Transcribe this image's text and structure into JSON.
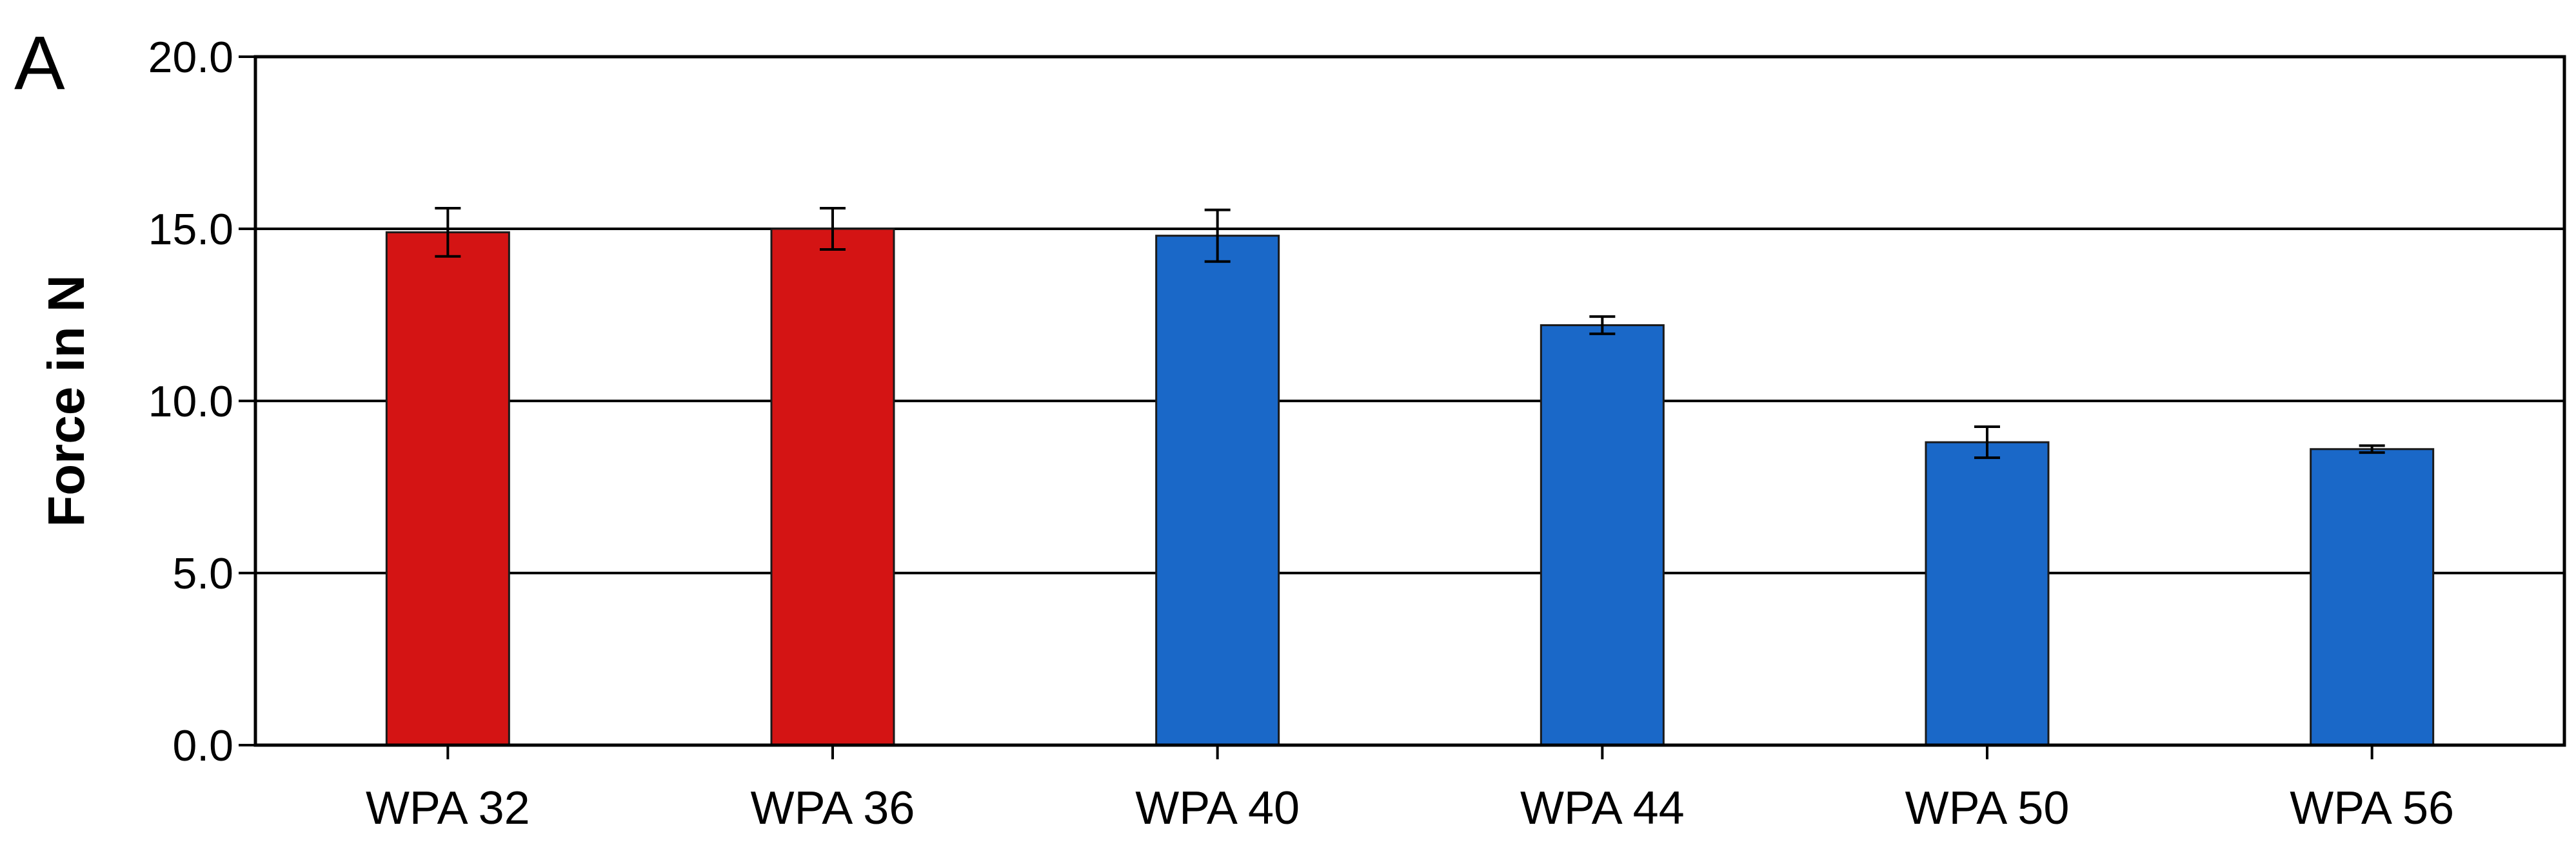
{
  "panel_label": "A",
  "colors": {
    "group_red": "#d41414",
    "group_blue": "#1a68c8",
    "bar_edge": "#1a1a1a",
    "grid": "#000000",
    "axis": "#000000"
  },
  "chart_data": {
    "type": "bar",
    "title": "",
    "xlabel": "",
    "ylabel": "Force in N",
    "ylim": [
      0,
      20
    ],
    "yticks": [
      "0.0",
      "5.0",
      "10.0",
      "15.0",
      "20.0"
    ],
    "grid": "horizontal",
    "legend": "none",
    "categories": [
      "WPA 32",
      "WPA 36",
      "WPA 40",
      "WPA 44",
      "WPA 50",
      "WPA 56"
    ],
    "values": [
      14.9,
      15.0,
      14.8,
      12.2,
      8.8,
      8.6
    ],
    "error": [
      0.7,
      0.6,
      0.75,
      0.25,
      0.45,
      0.1
    ],
    "bar_colors": [
      "#d41414",
      "#d41414",
      "#1a68c8",
      "#1a68c8",
      "#1a68c8",
      "#1a68c8"
    ]
  }
}
